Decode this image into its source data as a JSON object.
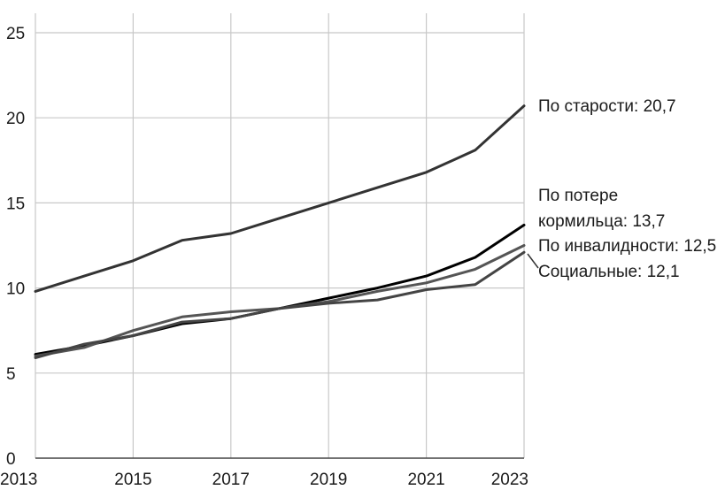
{
  "chart_data": {
    "type": "line",
    "title": "",
    "xlabel": "",
    "ylabel": "",
    "x": [
      2013,
      2014,
      2015,
      2016,
      2017,
      2018,
      2019,
      2020,
      2021,
      2022,
      2023
    ],
    "x_ticks": [
      "2013",
      "2015",
      "2017",
      "2019",
      "2021",
      "2023"
    ],
    "y_ticks": [
      "0",
      "5",
      "10",
      "15",
      "20",
      "25"
    ],
    "xlim": [
      2013,
      2023
    ],
    "ylim": [
      0,
      25
    ],
    "grid": true,
    "series": [
      {
        "name": "По старости",
        "label": "По старости: 20,7",
        "color": "#333333",
        "values": [
          9.8,
          10.7,
          11.6,
          12.8,
          13.2,
          14.1,
          15.0,
          15.9,
          16.8,
          18.1,
          20.7
        ]
      },
      {
        "name": "По потере кормильца",
        "label_lines": [
          "По потере",
          "кормильца: 13,7"
        ],
        "color": "#000000",
        "values": [
          6.1,
          6.6,
          7.2,
          7.9,
          8.2,
          8.8,
          9.4,
          10.0,
          10.7,
          11.8,
          13.7
        ]
      },
      {
        "name": "По инвалидности",
        "label": "По инвалидности: 12,5",
        "color": "#555555",
        "values": [
          6.0,
          6.5,
          7.5,
          8.3,
          8.6,
          8.8,
          9.2,
          9.8,
          10.3,
          11.1,
          12.5
        ]
      },
      {
        "name": "Социальные",
        "label": "Социальные: 12,1",
        "color": "#444444",
        "values": [
          5.9,
          6.7,
          7.2,
          8.0,
          8.2,
          8.8,
          9.1,
          9.3,
          9.9,
          10.2,
          12.1
        ]
      }
    ]
  }
}
